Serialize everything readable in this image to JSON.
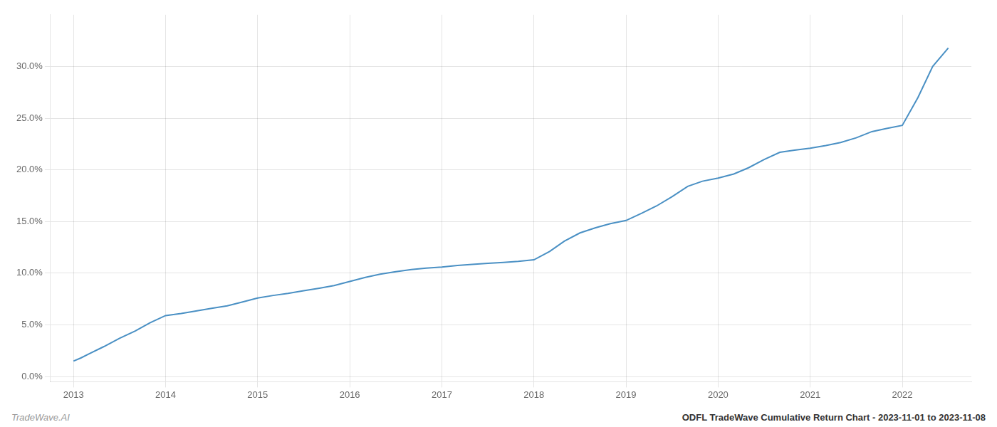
{
  "chart_data": {
    "type": "line",
    "x": [
      2013.0,
      2013.08,
      2013.17,
      2013.33,
      2013.5,
      2013.67,
      2013.83,
      2014.0,
      2014.17,
      2014.33,
      2014.5,
      2014.67,
      2014.83,
      2015.0,
      2015.17,
      2015.33,
      2015.5,
      2015.67,
      2015.83,
      2016.0,
      2016.17,
      2016.33,
      2016.5,
      2016.67,
      2016.83,
      2017.0,
      2017.17,
      2017.33,
      2017.5,
      2017.67,
      2017.83,
      2018.0,
      2018.17,
      2018.33,
      2018.5,
      2018.67,
      2018.83,
      2019.0,
      2019.17,
      2019.33,
      2019.5,
      2019.67,
      2019.83,
      2020.0,
      2020.17,
      2020.33,
      2020.5,
      2020.67,
      2020.83,
      2021.0,
      2021.17,
      2021.33,
      2021.5,
      2021.67,
      2021.83,
      2022.0,
      2022.17,
      2022.33,
      2022.5
    ],
    "values": [
      1.5,
      1.8,
      2.2,
      2.9,
      3.7,
      4.4,
      5.2,
      5.9,
      6.1,
      6.35,
      6.6,
      6.85,
      7.2,
      7.6,
      7.85,
      8.05,
      8.3,
      8.55,
      8.8,
      9.2,
      9.6,
      9.9,
      10.15,
      10.35,
      10.5,
      10.6,
      10.75,
      10.85,
      10.95,
      11.05,
      11.15,
      11.3,
      12.1,
      13.1,
      13.9,
      14.4,
      14.8,
      15.1,
      15.8,
      16.5,
      17.4,
      18.4,
      18.9,
      19.2,
      19.6,
      20.2,
      21.0,
      21.7,
      21.9,
      22.1,
      22.35,
      22.65,
      23.1,
      23.7,
      24.0,
      24.3,
      27.0,
      30.0,
      31.8
    ],
    "color": "#4a90c4",
    "xlim": [
      2012.75,
      2022.75
    ],
    "ylim": [
      -0.5,
      35.0
    ],
    "xticks": [
      2013,
      2014,
      2015,
      2016,
      2017,
      2018,
      2019,
      2020,
      2021,
      2022
    ],
    "yticks": [
      {
        "value": 0.0,
        "label": "0.0%"
      },
      {
        "value": 5.0,
        "label": "5.0%"
      },
      {
        "value": 10.0,
        "label": "10.0%"
      },
      {
        "value": 15.0,
        "label": "15.0%"
      },
      {
        "value": 20.0,
        "label": "20.0%"
      },
      {
        "value": 25.0,
        "label": "25.0%"
      },
      {
        "value": 30.0,
        "label": "30.0%"
      }
    ],
    "grid": true,
    "annotations": [
      "TradeWave.AI",
      "ODFL TradeWave Cumulative Return Chart - 2023-11-01 to 2023-11-08"
    ]
  }
}
